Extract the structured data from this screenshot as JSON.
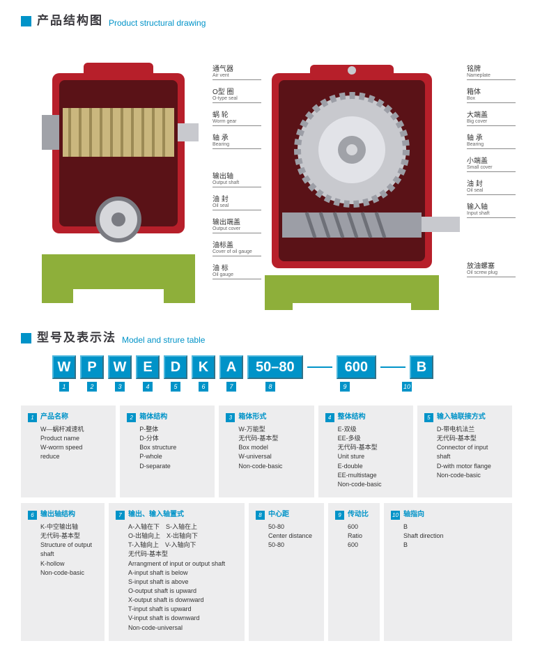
{
  "colors": {
    "accent": "#0093c8",
    "card_bg": "#ededee",
    "text": "#333333",
    "text_muted": "#666666",
    "product_box": "#b71f2a",
    "product_base": "#8eaf3a",
    "gear": "#cab77e"
  },
  "section1": {
    "title_cn": "产品结构图",
    "title_en": "Product structural drawing"
  },
  "section2": {
    "title_cn": "型号及表示法",
    "title_en": "Model and strure table"
  },
  "callouts_mid": [
    {
      "cn": "通气器",
      "en": "Air vent"
    },
    {
      "cn": "O型 圈",
      "en": "O-type seal"
    },
    {
      "cn": "蜗 轮",
      "en": "Worm gear"
    },
    {
      "cn": "轴 承",
      "en": "Bearing"
    },
    {
      "cn": "输出轴",
      "en": "Output shaft"
    },
    {
      "cn": "油 封",
      "en": "Oil seal"
    },
    {
      "cn": "输出端盖",
      "en": "Output cover"
    },
    {
      "cn": "油标盖",
      "en": "Cover of oil gauge"
    },
    {
      "cn": "油 标",
      "en": "Oil gauge"
    }
  ],
  "callouts_right": [
    {
      "cn": "铭牌",
      "en": "Nameplate"
    },
    {
      "cn": "箱体",
      "en": "Box"
    },
    {
      "cn": "大端盖",
      "en": "Big cover"
    },
    {
      "cn": "轴 承",
      "en": "Bearing"
    },
    {
      "cn": "小端盖",
      "en": "Small cover"
    },
    {
      "cn": "油 封",
      "en": "Oil seal"
    },
    {
      "cn": "输入轴",
      "en": "Input shaft"
    },
    {
      "cn": "放油螺塞",
      "en": "Oil screw plug"
    }
  ],
  "model_boxes": [
    "W",
    "P",
    "W",
    "E",
    "D",
    "K",
    "A",
    "50–80",
    "600",
    "B"
  ],
  "legend": [
    {
      "idx": "1",
      "title": "产品名称",
      "lines": [
        "W—蜗杆减速机",
        "Product name",
        "W-worm speed",
        "reduce"
      ]
    },
    {
      "idx": "2",
      "title": "箱体结构",
      "lines": [
        "P-整体",
        "D-分体",
        "Box structure",
        "P-whole",
        "D-separate"
      ]
    },
    {
      "idx": "3",
      "title": "箱体形式",
      "lines": [
        "W-万能型",
        "无代码-基本型",
        "Box model",
        "W-universal",
        "Non-code-basic"
      ]
    },
    {
      "idx": "4",
      "title": "整体结构",
      "lines": [
        "E-双级",
        "EE-多级",
        "无代码-基本型",
        "Unit  sture",
        "E-double",
        "EE-multistage",
        "Non-code-basic"
      ]
    },
    {
      "idx": "5",
      "title": "输入轴联接方式",
      "lines": [
        "D-带电机法兰",
        "无代码-基本型",
        "Connector of input",
        "shaft",
        "D-with motor flange",
        "Non-code-basic"
      ]
    },
    {
      "idx": "6",
      "title": "输出轴结构",
      "lines": [
        "K-中空输出轴",
        "无代码-基本型",
        "Structure of output",
        "shaft",
        "K-hollow",
        "Non-code-basic"
      ]
    },
    {
      "idx": "7",
      "title": "输出、输入轴置式",
      "lines": [
        "A-入轴在下　S-入轴在上",
        "O-出轴向上　X-出轴向下",
        "T-入轴向上　V-入轴向下",
        "无代码-基本型",
        "Arrangment of input or output shaft",
        "A-input shaft is below",
        "S-input shaft is above",
        "O-output shaft is upward",
        "X-output shaft is downward",
        "T-input shaft is upward",
        "V-input shaft is downward",
        "Non-code-universal"
      ]
    },
    {
      "idx": "8",
      "title": "中心距",
      "lines": [
        "50-80",
        "Center distance",
        "50-80"
      ]
    },
    {
      "idx": "9",
      "title": "传动比",
      "lines": [
        "600",
        "Ratio",
        "600"
      ]
    },
    {
      "idx": "10",
      "title": "轴指向",
      "lines": [
        "B",
        "Shaft direction",
        "B"
      ]
    }
  ]
}
